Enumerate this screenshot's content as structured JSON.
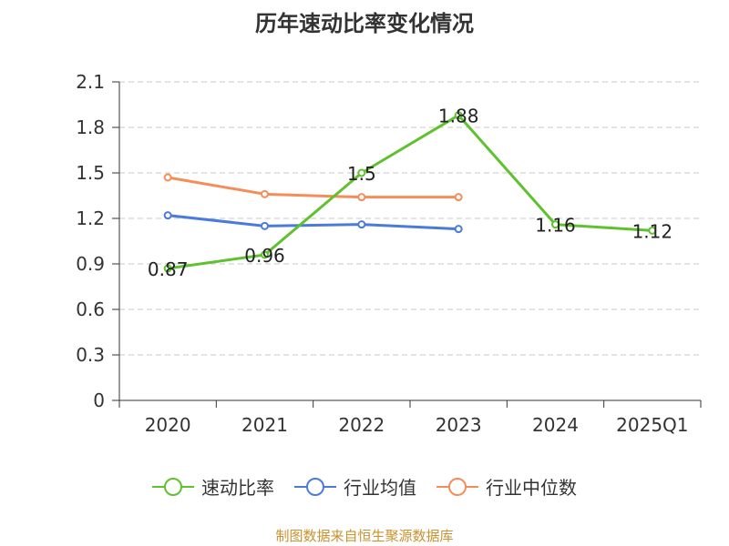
{
  "chart_data": {
    "type": "line",
    "title": "历年速动比率变化情况",
    "categories": [
      "2020",
      "2021",
      "2022",
      "2023",
      "2024",
      "2025Q1"
    ],
    "y_ticks": [
      "0",
      "0.3",
      "0.6",
      "0.9",
      "1.2",
      "1.5",
      "1.8",
      "2.1"
    ],
    "ylim": [
      0,
      2.1
    ],
    "grid": true,
    "legend_position": "bottom",
    "series": [
      {
        "name": "速动比率",
        "color": "#5fc12e",
        "values": [
          0.87,
          0.96,
          1.5,
          1.88,
          1.16,
          1.12
        ],
        "labels": [
          "0.87",
          "0.96",
          "1.5",
          "1.88",
          "1.16",
          "1.12"
        ]
      },
      {
        "name": "行业均值",
        "color": "#4a7bdb",
        "values": [
          1.22,
          1.15,
          1.16,
          1.13,
          null,
          null
        ]
      },
      {
        "name": "行业中位数",
        "color": "#f58d59",
        "values": [
          1.47,
          1.36,
          1.34,
          1.34,
          null,
          null
        ]
      }
    ],
    "source": "制图数据来自恒生聚源数据库",
    "source_color": "#c8922e"
  }
}
